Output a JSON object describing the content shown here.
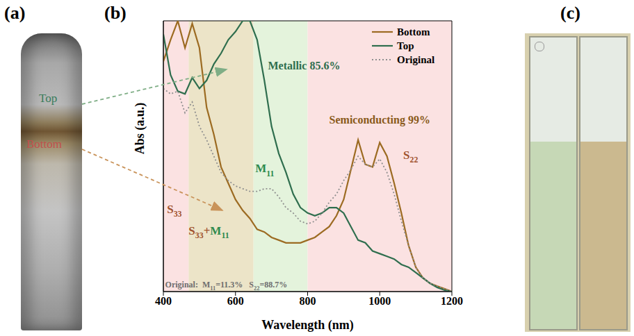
{
  "panel_labels": [
    "(a)",
    "(b)",
    "(c)"
  ],
  "photo_a": {
    "labels": [
      {
        "text": "Top",
        "color": "#3a7d5c"
      },
      {
        "text": "Bottom",
        "color": "#c0504d"
      }
    ]
  },
  "chart_data": {
    "type": "line",
    "x": [
      400,
      420,
      440,
      460,
      480,
      500,
      520,
      540,
      560,
      580,
      600,
      620,
      640,
      660,
      680,
      700,
      720,
      740,
      760,
      780,
      800,
      820,
      840,
      860,
      880,
      900,
      920,
      940,
      960,
      980,
      1000,
      1020,
      1040,
      1060,
      1080,
      1100,
      1120,
      1140,
      1160,
      1180,
      1200
    ],
    "series": [
      {
        "name": "Bottom",
        "color": "#9c6b22",
        "line_style": "solid",
        "values": [
          0.85,
          0.93,
          1.0,
          0.9,
          0.99,
          0.9,
          0.68,
          0.58,
          0.46,
          0.4,
          0.34,
          0.3,
          0.27,
          0.23,
          0.22,
          0.2,
          0.19,
          0.18,
          0.18,
          0.18,
          0.19,
          0.2,
          0.22,
          0.24,
          0.28,
          0.34,
          0.45,
          0.56,
          0.47,
          0.46,
          0.55,
          0.5,
          0.4,
          0.29,
          0.17,
          0.09,
          0.05,
          0.03,
          0.02,
          0.01,
          0
        ]
      },
      {
        "name": "Top",
        "color": "#2f6e4e",
        "line_style": "solid",
        "values": [
          0.95,
          0.8,
          0.74,
          0.73,
          0.79,
          0.75,
          0.78,
          0.84,
          0.88,
          0.93,
          0.96,
          1.0,
          1.0,
          0.93,
          0.78,
          0.61,
          0.51,
          0.44,
          0.36,
          0.31,
          0.29,
          0.28,
          0.29,
          0.31,
          0.31,
          0.29,
          0.24,
          0.19,
          0.18,
          0.15,
          0.14,
          0.13,
          0.12,
          0.1,
          0.09,
          0.07,
          0.05,
          0.03,
          0.015,
          0.005,
          0
        ]
      },
      {
        "name": "Original",
        "color": "#8f8f8f",
        "line_style": "dotted",
        "values": [
          0.75,
          0.73,
          0.74,
          0.66,
          0.7,
          0.61,
          0.56,
          0.5,
          0.44,
          0.41,
          0.39,
          0.38,
          0.37,
          0.37,
          0.38,
          0.38,
          0.35,
          0.31,
          0.29,
          0.26,
          0.25,
          0.26,
          0.29,
          0.33,
          0.36,
          0.41,
          0.45,
          0.5,
          0.47,
          0.46,
          0.49,
          0.44,
          0.36,
          0.26,
          0.17,
          0.09,
          0.05,
          0.03,
          0.02,
          0.01,
          0
        ]
      }
    ],
    "xlabel": "Wavelength (nm)",
    "ylabel": "Abs (a.u.)",
    "xlim": [
      400,
      1200
    ],
    "xticks": [
      400,
      600,
      800,
      1000,
      1200
    ],
    "ylim": [
      0,
      1
    ],
    "tick_labels": "x",
    "legend": "upper right",
    "regions": [
      {
        "x": [
          400,
          470
        ],
        "color": "#fbe2e2"
      },
      {
        "x": [
          470,
          650
        ],
        "color": "#ece4c8"
      },
      {
        "x": [
          650,
          800
        ],
        "color": "#e4f3dc"
      },
      {
        "x": [
          800,
          1200
        ],
        "color": "#fbe2e2"
      }
    ],
    "annotations": [
      {
        "text": "Metallic 85.6%",
        "color": "#2f6e4e"
      },
      {
        "text": "Semiconducting 99%",
        "color": "#8a5a1a"
      },
      {
        "text": "S22",
        "color": "#a0522d"
      },
      {
        "text": "S33",
        "color": "#a0522d"
      },
      {
        "text": "S33+M11",
        "colors": [
          "#a0522d",
          "#2f8a4e"
        ]
      },
      {
        "text": "M11",
        "color": "#2f8a4e"
      },
      {
        "text": "Original:  M11=11.3%   S22=88.7%",
        "color": "#6e6e6e"
      }
    ]
  }
}
